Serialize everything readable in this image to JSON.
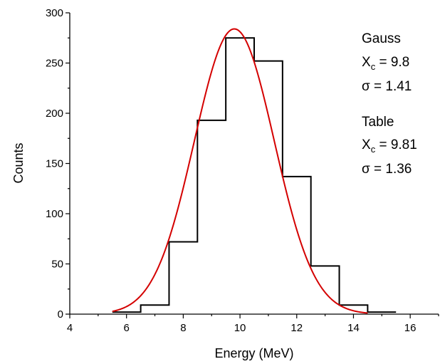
{
  "chart_data": {
    "type": "bar",
    "subtype": "histogram",
    "xlabel": "Energy (MeV)",
    "ylabel": "Counts",
    "xlim": [
      4,
      17
    ],
    "ylim": [
      0,
      300
    ],
    "x_ticks": [
      "4",
      "6",
      "8",
      "10",
      "12",
      "14",
      "16"
    ],
    "y_ticks": [
      "0",
      "50",
      "100",
      "150",
      "200",
      "250",
      "300"
    ],
    "bin_edges": [
      5.5,
      6.5,
      7.5,
      8.5,
      9.5,
      10.5,
      11.5,
      12.5,
      13.5,
      14.5,
      15.5
    ],
    "values": [
      2,
      9,
      72,
      193,
      275,
      252,
      137,
      48,
      9,
      2
    ],
    "histogram_color": "#000000",
    "fit": {
      "type": "gaussian",
      "center": 9.8,
      "sigma": 1.41,
      "amplitude": 284,
      "x_range": [
        5.5,
        14.5
      ],
      "color": "#d40000"
    },
    "annotations": {
      "gauss": {
        "title": "Gauss",
        "xc_label": "X",
        "xc_sub": "c",
        "xc_value": " = 9.8",
        "sigma_label": "σ = 1.41"
      },
      "table": {
        "title": "Table",
        "xc_label": "X",
        "xc_sub": "c",
        "xc_value": " = 9.81",
        "sigma_label": "σ = 1.36"
      }
    }
  }
}
